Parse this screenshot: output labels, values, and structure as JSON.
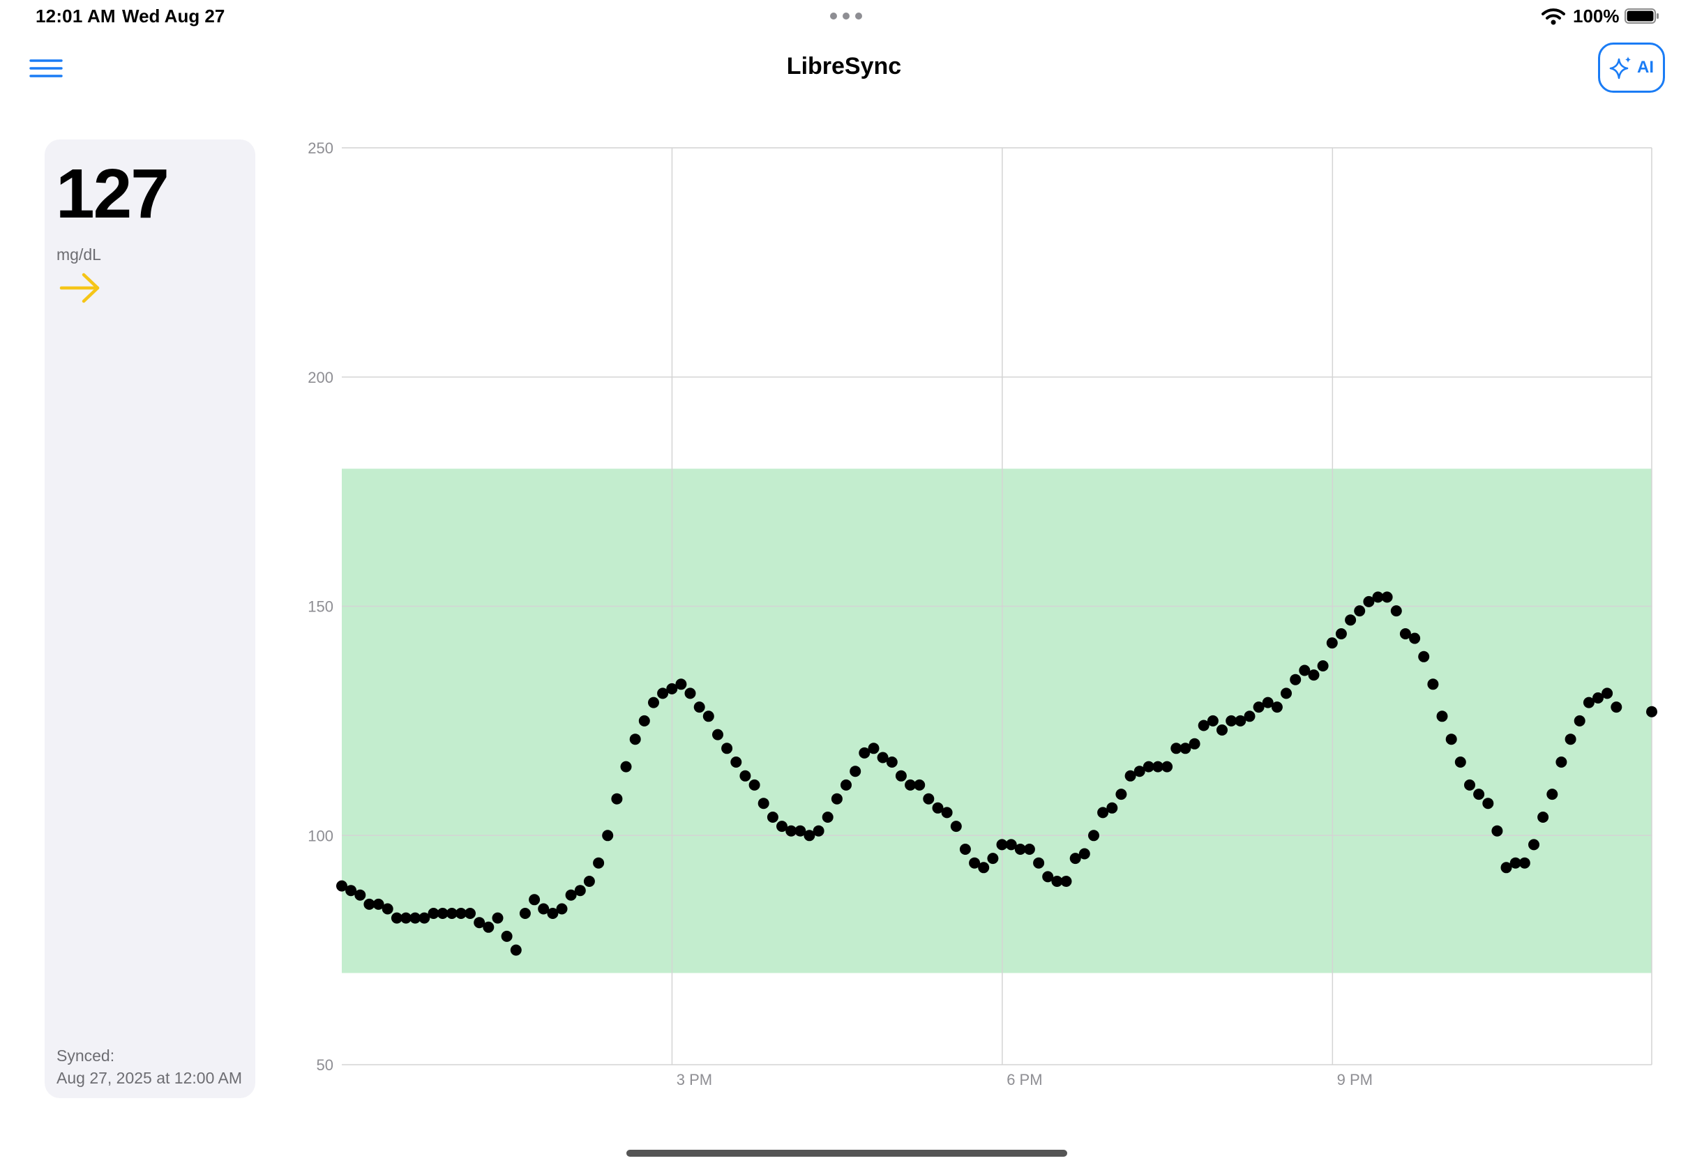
{
  "status_bar": {
    "time": "12:01 AM",
    "date": "Wed Aug 27",
    "battery_percent": "100%",
    "battery_level": 1.0
  },
  "header": {
    "title": "LibreSync",
    "ai_button_label": "AI",
    "menu_icon": "hamburger-icon",
    "ai_icon": "sparkles-icon"
  },
  "reading": {
    "value": "127",
    "unit": "mg/dL",
    "trend_icon": "arrow-right-icon",
    "trend_color": "#f5c518",
    "synced_label": "Synced:",
    "synced_time": "Aug 27, 2025 at 12:00 AM"
  },
  "colors": {
    "accent": "#1a7cf5",
    "target_range_fill": "#c3edce",
    "point": "#000000"
  },
  "chart_data": {
    "type": "scatter",
    "ylim": [
      50,
      250
    ],
    "yticks": [
      "50",
      "100",
      "150",
      "200",
      "250"
    ],
    "xlim_hours": [
      12.0,
      23.9
    ],
    "x_unit": "hours since midnight",
    "xticks": [
      {
        "label": "3 PM",
        "hour": 15
      },
      {
        "label": "6 PM",
        "hour": 18
      },
      {
        "label": "9 PM",
        "hour": 21
      }
    ],
    "target_range": [
      70,
      180
    ],
    "grid": true,
    "x_start_hour": 12.0,
    "x_step_hours": 0.0833,
    "values": [
      89,
      88,
      87,
      85,
      85,
      84,
      82,
      82,
      82,
      82,
      83,
      83,
      83,
      83,
      83,
      81,
      80,
      82,
      78,
      75,
      83,
      86,
      84,
      83,
      84,
      87,
      88,
      90,
      94,
      100,
      108,
      115,
      121,
      125,
      129,
      131,
      132,
      133,
      131,
      128,
      126,
      122,
      119,
      116,
      113,
      111,
      107,
      104,
      102,
      101,
      101,
      100,
      101,
      104,
      108,
      111,
      114,
      118,
      119,
      117,
      116,
      113,
      111,
      111,
      108,
      106,
      105,
      102,
      97,
      94,
      93,
      95,
      98,
      98,
      97,
      97,
      94,
      91,
      90,
      90,
      95,
      96,
      100,
      105,
      106,
      109,
      113,
      114,
      115,
      115,
      115,
      119,
      119,
      120,
      124,
      125,
      123,
      125,
      125,
      126,
      128,
      129,
      128,
      131,
      134,
      136,
      135,
      137,
      142,
      144,
      147,
      149,
      151,
      152,
      152,
      149,
      144,
      143,
      139,
      133,
      126,
      121,
      116,
      111,
      109,
      107,
      101,
      93,
      94,
      94,
      98,
      104,
      109,
      116,
      121,
      125,
      129,
      130,
      131,
      128
    ],
    "last_point": {
      "hour": 23.9,
      "value": 127
    }
  }
}
